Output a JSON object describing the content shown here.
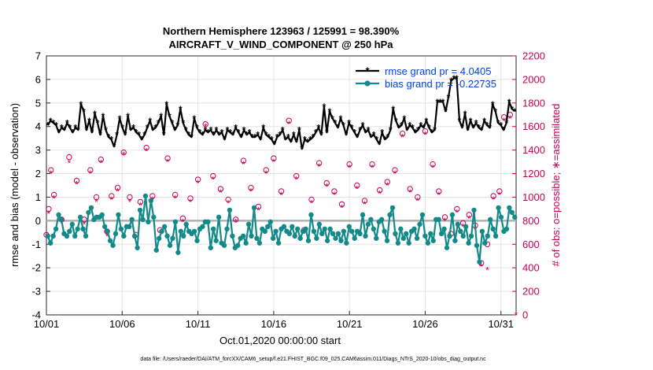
{
  "title": {
    "line1": "Northern Hemisphere 123963 / 125991 = 98.390%",
    "line2": "AIRCRAFT_V_WIND_COMPONENT @ 250 hPa"
  },
  "xlabel": "Oct.01,2020 00:00:00 start",
  "ylabel_left": "rmse and bias (model - observation)",
  "ylabel_right": "# of obs: o=possible; ∗=assimilated",
  "footer": "data file: /Users/raeder/DAI/ATM_forcXX/CAM6_setup/f.e21.FHIST_BGC.f09_025.CAM6assim.011/Diags_NTrS_2020-10/obs_diag_output.nc",
  "legend": {
    "rmse": "rmse grand pr = 4.0405",
    "bias": "bias grand pr = -0.22735"
  },
  "colors": {
    "rmse": "#000000",
    "bias": "#138a8a",
    "obs": "#cc0055",
    "legend_text": "#0044dd",
    "zero": "#b0b0b0"
  },
  "chart_data": {
    "type": "line",
    "x_ticklabels": [
      "10/01",
      "10/06",
      "10/11",
      "10/16",
      "10/21",
      "10/26",
      "10/31"
    ],
    "x_tickdays": [
      1,
      6,
      11,
      16,
      21,
      26,
      31
    ],
    "xlim": [
      1,
      32
    ],
    "ylim_left": [
      -4,
      7
    ],
    "yticks_left": [
      -4,
      -3,
      -2,
      -1,
      0,
      1,
      2,
      3,
      4,
      5,
      6,
      7
    ],
    "ylim_right": [
      0,
      2200
    ],
    "yticks_right": [
      0,
      200,
      400,
      600,
      800,
      1000,
      1200,
      1400,
      1600,
      1800,
      2000,
      2200
    ],
    "grid": true,
    "legend_position": "top-right",
    "rmse": [
      4.05,
      4.25,
      4.15,
      4.05,
      3.75,
      3.95,
      3.85,
      4.15,
      3.95,
      3.75,
      3.95,
      3.85,
      4.95,
      4.65,
      3.85,
      4.25,
      3.75,
      4.55,
      4.15,
      3.65,
      4.45,
      3.85,
      3.55,
      3.45,
      3.15,
      3.65,
      4.35,
      3.95,
      3.65,
      4.45,
      3.85,
      3.95,
      3.75,
      3.65,
      3.45,
      3.65,
      3.95,
      4.25,
      3.85,
      3.95,
      4.15,
      4.45,
      3.65,
      4.95,
      4.45,
      4.15,
      3.85,
      4.05,
      4.75,
      4.15,
      3.85,
      3.65,
      3.55,
      4.35,
      3.95,
      3.75,
      3.65,
      3.85,
      3.75,
      3.85,
      3.65,
      3.85,
      3.65,
      3.75,
      3.45,
      3.85,
      3.75,
      3.65,
      3.95,
      3.75,
      3.55,
      3.85,
      3.65,
      3.75,
      3.55,
      3.55,
      3.65,
      3.45,
      3.95,
      3.65,
      3.55,
      3.45,
      3.25,
      3.55,
      3.65,
      3.85,
      3.45,
      3.55,
      3.35,
      3.65,
      3.35,
      3.85,
      3.05,
      3.45,
      3.35,
      3.45,
      3.55,
      3.75,
      3.95,
      3.65,
      4.85,
      3.75,
      4.65,
      4.35,
      4.15,
      3.95,
      4.35,
      4.05,
      3.65,
      4.15,
      3.95,
      3.75,
      3.55,
      3.85,
      4.05,
      3.75,
      3.85,
      3.55,
      3.65,
      3.45,
      3.25,
      3.75,
      3.45,
      3.55,
      3.85,
      4.75,
      4.25,
      3.95,
      4.05,
      4.35,
      3.85,
      4.05,
      3.95,
      3.75,
      3.85,
      4.05,
      3.95,
      4.25,
      3.95,
      3.75,
      3.85,
      5.05,
      5.05,
      5.05,
      4.65,
      5.25,
      5.95,
      6.05,
      6.05,
      4.25,
      3.95,
      4.55,
      3.85,
      4.25,
      3.95,
      4.15,
      3.95,
      3.85,
      4.25,
      4.05,
      3.95,
      4.95,
      4.65,
      4.15,
      4.05,
      3.85,
      4.15,
      5.05,
      4.75,
      4.65
    ],
    "bias": [
      -0.65,
      -0.95,
      -0.65,
      -0.35,
      0.25,
      0.05,
      -0.55,
      -0.65,
      -0.45,
      -0.15,
      -0.65,
      -0.35,
      0.15,
      -0.35,
      -0.65,
      0.35,
      0.55,
      0.05,
      0.15,
      0.15,
      0.25,
      -0.25,
      -0.45,
      -0.85,
      -1.05,
      -0.55,
      0.25,
      -0.35,
      -0.65,
      -0.25,
      -0.25,
      0.05,
      -0.65,
      -1.15,
      0.45,
      0.05,
      1.05,
      -0.05,
      0.85,
      0.15,
      -1.25,
      -0.75,
      -0.45,
      -0.25,
      -0.65,
      -1.05,
      -0.75,
      -0.05,
      -1.35,
      -0.45,
      -0.65,
      -0.15,
      -0.45,
      -0.55,
      -0.45,
      -0.85,
      -0.35,
      -0.25,
      -0.05,
      -0.05,
      -1.15,
      -0.35,
      -0.85,
      0.15,
      -0.95,
      -1.05,
      -0.35,
      0.45,
      -0.65,
      -1.15,
      -1.05,
      -0.75,
      -0.65,
      -0.95,
      -0.15,
      -0.65,
      0.55,
      -0.75,
      -0.95,
      -0.35,
      -0.45,
      -0.25,
      -0.05,
      -0.75,
      -0.45,
      -0.95,
      -0.35,
      -0.25,
      -0.45,
      -0.55,
      -0.25,
      -0.65,
      -0.35,
      -0.75,
      -0.45,
      -0.35,
      -0.85,
      0.25,
      -0.45,
      -0.75,
      -0.15,
      -0.55,
      -0.35,
      -0.85,
      -0.35,
      -0.55,
      -0.75,
      -0.55,
      -0.85,
      -0.45,
      -0.95,
      -0.25,
      -0.45,
      -0.75,
      -0.45,
      -0.55,
      0.25,
      -0.65,
      -0.15,
      0.05,
      -0.35,
      -0.75,
      -0.05,
      0.05,
      -0.45,
      -0.85,
      0.25,
      0.55,
      -0.55,
      -0.95,
      -0.35,
      -0.75,
      -0.55,
      -0.95,
      -0.45,
      -0.35,
      -0.75,
      -0.15,
      0.25,
      -0.65,
      -0.95,
      -0.55,
      -0.85,
      0.05,
      0.05,
      -0.55,
      -0.35,
      -1.15,
      -0.65,
      0.25,
      -0.85,
      -0.15,
      -0.45,
      -0.65,
      -0.25,
      -0.95,
      -0.65,
      0.45,
      -1.05,
      -1.75,
      -0.45,
      -0.95,
      -0.65,
      0.05,
      -0.35,
      -0.65,
      0.55,
      0.15,
      -0.45,
      -0.35,
      0.55,
      0.35,
      0.15
    ],
    "obs_possible": [
      {
        "x": 1.0,
        "y": 680
      },
      {
        "x": 1.15,
        "y": 900
      },
      {
        "x": 1.3,
        "y": 1230
      },
      {
        "x": 1.5,
        "y": 1020
      },
      {
        "x": 2.0,
        "y": 810
      },
      {
        "x": 2.5,
        "y": 1340
      },
      {
        "x": 3.0,
        "y": 1140
      },
      {
        "x": 3.5,
        "y": 810
      },
      {
        "x": 3.9,
        "y": 1230
      },
      {
        "x": 4.3,
        "y": 1000
      },
      {
        "x": 4.6,
        "y": 1320
      },
      {
        "x": 5.0,
        "y": 710
      },
      {
        "x": 5.3,
        "y": 1010
      },
      {
        "x": 5.7,
        "y": 1080
      },
      {
        "x": 6.1,
        "y": 1380
      },
      {
        "x": 6.5,
        "y": 1000
      },
      {
        "x": 6.9,
        "y": 680
      },
      {
        "x": 7.2,
        "y": 960
      },
      {
        "x": 7.6,
        "y": 1420
      },
      {
        "x": 8.0,
        "y": 1010
      },
      {
        "x": 8.5,
        "y": 720
      },
      {
        "x": 9.0,
        "y": 1330
      },
      {
        "x": 9.5,
        "y": 1020
      },
      {
        "x": 10.0,
        "y": 820
      },
      {
        "x": 10.5,
        "y": 990
      },
      {
        "x": 11.0,
        "y": 1150
      },
      {
        "x": 11.5,
        "y": 1620
      },
      {
        "x": 12.0,
        "y": 1180
      },
      {
        "x": 12.5,
        "y": 1070
      },
      {
        "x": 13.0,
        "y": 980
      },
      {
        "x": 13.5,
        "y": 810
      },
      {
        "x": 14.0,
        "y": 1310
      },
      {
        "x": 14.5,
        "y": 1080
      },
      {
        "x": 15.0,
        "y": 920
      },
      {
        "x": 15.5,
        "y": 1230
      },
      {
        "x": 16.0,
        "y": 1330
      },
      {
        "x": 16.5,
        "y": 1050
      },
      {
        "x": 17.0,
        "y": 1650
      },
      {
        "x": 17.5,
        "y": 1180
      },
      {
        "x": 18.0,
        "y": 720
      },
      {
        "x": 18.5,
        "y": 980
      },
      {
        "x": 19.0,
        "y": 1290
      },
      {
        "x": 19.5,
        "y": 1120
      },
      {
        "x": 20.0,
        "y": 1050
      },
      {
        "x": 20.5,
        "y": 940
      },
      {
        "x": 21.0,
        "y": 1280
      },
      {
        "x": 21.5,
        "y": 1100
      },
      {
        "x": 22.0,
        "y": 970
      },
      {
        "x": 22.5,
        "y": 1280
      },
      {
        "x": 23.0,
        "y": 1060
      },
      {
        "x": 23.5,
        "y": 1130
      },
      {
        "x": 24.0,
        "y": 1230
      },
      {
        "x": 24.5,
        "y": 1540
      },
      {
        "x": 25.0,
        "y": 1070
      },
      {
        "x": 25.5,
        "y": 1000
      },
      {
        "x": 26.0,
        "y": 1560
      },
      {
        "x": 26.5,
        "y": 1280
      },
      {
        "x": 26.9,
        "y": 1050
      },
      {
        "x": 27.3,
        "y": 830
      },
      {
        "x": 27.7,
        "y": 690
      },
      {
        "x": 28.1,
        "y": 900
      },
      {
        "x": 28.5,
        "y": 780
      },
      {
        "x": 28.9,
        "y": 850
      },
      {
        "x": 29.3,
        "y": 760
      },
      {
        "x": 29.7,
        "y": 440
      },
      {
        "x": 30.1,
        "y": 600
      },
      {
        "x": 30.5,
        "y": 1010
      },
      {
        "x": 30.9,
        "y": 1050
      },
      {
        "x": 31.2,
        "y": 1680
      },
      {
        "x": 31.6,
        "y": 1700
      }
    ],
    "obs_assimilated": [
      {
        "x": 1.0,
        "y": 670
      },
      {
        "x": 1.15,
        "y": 860
      },
      {
        "x": 1.3,
        "y": 1200
      },
      {
        "x": 1.5,
        "y": 990
      },
      {
        "x": 2.0,
        "y": 780
      },
      {
        "x": 2.5,
        "y": 1290
      },
      {
        "x": 3.0,
        "y": 1110
      },
      {
        "x": 3.5,
        "y": 770
      },
      {
        "x": 3.9,
        "y": 1200
      },
      {
        "x": 4.3,
        "y": 960
      },
      {
        "x": 4.6,
        "y": 1290
      },
      {
        "x": 5.0,
        "y": 670
      },
      {
        "x": 5.3,
        "y": 980
      },
      {
        "x": 5.7,
        "y": 1050
      },
      {
        "x": 6.1,
        "y": 1360
      },
      {
        "x": 6.5,
        "y": 960
      },
      {
        "x": 6.9,
        "y": 660
      },
      {
        "x": 7.2,
        "y": 930
      },
      {
        "x": 7.6,
        "y": 1390
      },
      {
        "x": 8.0,
        "y": 980
      },
      {
        "x": 8.5,
        "y": 700
      },
      {
        "x": 9.0,
        "y": 1300
      },
      {
        "x": 9.5,
        "y": 990
      },
      {
        "x": 10.0,
        "y": 790
      },
      {
        "x": 10.5,
        "y": 960
      },
      {
        "x": 11.0,
        "y": 1120
      },
      {
        "x": 11.5,
        "y": 1600
      },
      {
        "x": 12.0,
        "y": 1150
      },
      {
        "x": 12.5,
        "y": 1040
      },
      {
        "x": 13.0,
        "y": 950
      },
      {
        "x": 13.5,
        "y": 790
      },
      {
        "x": 14.0,
        "y": 1280
      },
      {
        "x": 14.5,
        "y": 1050
      },
      {
        "x": 15.0,
        "y": 890
      },
      {
        "x": 15.5,
        "y": 1200
      },
      {
        "x": 16.0,
        "y": 1300
      },
      {
        "x": 16.5,
        "y": 1020
      },
      {
        "x": 17.0,
        "y": 1620
      },
      {
        "x": 17.5,
        "y": 1150
      },
      {
        "x": 18.0,
        "y": 690
      },
      {
        "x": 18.5,
        "y": 950
      },
      {
        "x": 19.0,
        "y": 1260
      },
      {
        "x": 19.5,
        "y": 1090
      },
      {
        "x": 20.0,
        "y": 1020
      },
      {
        "x": 20.5,
        "y": 910
      },
      {
        "x": 21.0,
        "y": 1250
      },
      {
        "x": 21.5,
        "y": 1070
      },
      {
        "x": 22.0,
        "y": 940
      },
      {
        "x": 22.5,
        "y": 1250
      },
      {
        "x": 23.0,
        "y": 1030
      },
      {
        "x": 23.5,
        "y": 1100
      },
      {
        "x": 24.0,
        "y": 1200
      },
      {
        "x": 24.5,
        "y": 1510
      },
      {
        "x": 25.0,
        "y": 1040
      },
      {
        "x": 25.5,
        "y": 970
      },
      {
        "x": 26.0,
        "y": 1530
      },
      {
        "x": 26.5,
        "y": 1250
      },
      {
        "x": 26.9,
        "y": 1020
      },
      {
        "x": 27.3,
        "y": 800
      },
      {
        "x": 27.7,
        "y": 660
      },
      {
        "x": 28.1,
        "y": 870
      },
      {
        "x": 28.5,
        "y": 750
      },
      {
        "x": 28.9,
        "y": 820
      },
      {
        "x": 29.3,
        "y": 730
      },
      {
        "x": 29.7,
        "y": 410
      },
      {
        "x": 30.1,
        "y": 380
      },
      {
        "x": 30.5,
        "y": 980
      },
      {
        "x": 30.9,
        "y": 1020
      },
      {
        "x": 31.2,
        "y": 1650
      },
      {
        "x": 31.6,
        "y": 1670
      },
      {
        "x": 32.0,
        "y": 0
      }
    ]
  }
}
